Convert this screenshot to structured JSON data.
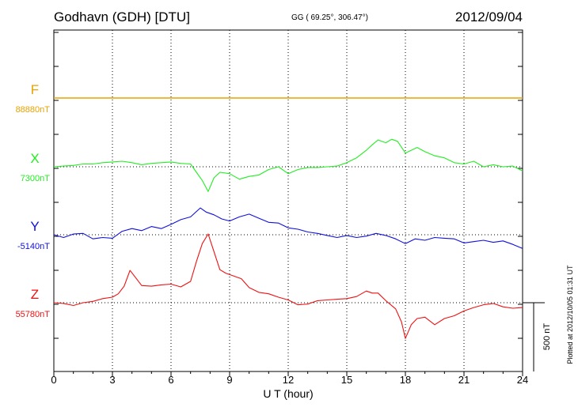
{
  "header": {
    "station": "Godhavn (GDH)  [DTU]",
    "coords": "GG ( 69.25°, 306.47°)",
    "date": "2012/09/04"
  },
  "plotted_note": "Plotted at 2012/10/05 01:31  UT",
  "chart_data": {
    "type": "line",
    "xlabel": "U T (hour)",
    "xlim": [
      0,
      24
    ],
    "xticks": [
      "0",
      "3",
      "6",
      "9",
      "12",
      "15",
      "18",
      "21",
      "24"
    ],
    "y_units": "nT",
    "scale_bar": {
      "label": "500 nT",
      "value": 500
    },
    "series": [
      {
        "name": "F",
        "baseline": "88880nT",
        "color": "#e8a200",
        "x": [
          0,
          24
        ],
        "y": [
          0,
          0
        ]
      },
      {
        "name": "X",
        "baseline": "7300nT",
        "color": "#22ee22",
        "x": [
          0,
          0.5,
          1,
          1.5,
          2,
          2.5,
          3,
          3.5,
          4,
          4.5,
          5,
          5.5,
          6,
          6.5,
          7,
          7.3,
          7.6,
          7.9,
          8.2,
          8.5,
          9,
          9.5,
          10,
          10.5,
          11,
          11.5,
          12,
          12.5,
          13,
          13.5,
          14,
          14.5,
          15,
          15.5,
          16,
          16.3,
          16.6,
          17,
          17.3,
          17.6,
          18,
          18.3,
          18.6,
          19,
          19.5,
          20,
          20.5,
          21,
          21.5,
          22,
          22.5,
          23,
          23.5,
          24
        ],
        "y": [
          0,
          5,
          10,
          20,
          20,
          30,
          35,
          40,
          30,
          15,
          25,
          30,
          35,
          25,
          20,
          -40,
          -100,
          -180,
          -80,
          -40,
          -50,
          -90,
          -70,
          -60,
          -20,
          0,
          -50,
          -20,
          -5,
          -5,
          0,
          5,
          30,
          65,
          120,
          160,
          195,
          175,
          200,
          185,
          100,
          120,
          140,
          110,
          80,
          65,
          30,
          20,
          40,
          0,
          15,
          0,
          5,
          -30
        ]
      },
      {
        "name": "Y",
        "baseline": "-5140nT",
        "color": "#1010dd",
        "x": [
          0,
          0.5,
          1,
          1.5,
          2,
          2.5,
          3,
          3.5,
          4,
          4.5,
          5,
          5.5,
          6,
          6.5,
          7,
          7.5,
          7.8,
          8.2,
          8.6,
          9,
          9.5,
          10,
          10.5,
          11,
          11.5,
          12,
          12.5,
          13,
          13.5,
          14,
          14.5,
          15,
          15.5,
          16,
          16.5,
          17,
          17.5,
          18,
          18.5,
          19,
          19.5,
          20,
          20.5,
          21,
          21.5,
          22,
          22.5,
          23,
          23.5,
          24
        ],
        "y": [
          0,
          -20,
          5,
          10,
          -30,
          -20,
          -25,
          25,
          45,
          30,
          60,
          45,
          75,
          110,
          130,
          195,
          165,
          145,
          115,
          100,
          130,
          150,
          120,
          90,
          85,
          50,
          40,
          20,
          10,
          -5,
          -20,
          -5,
          -20,
          -10,
          10,
          -5,
          -30,
          -65,
          -30,
          -40,
          -20,
          -25,
          -30,
          -60,
          -50,
          -40,
          -55,
          -45,
          -70,
          -100
        ]
      },
      {
        "name": "Z",
        "baseline": "55780nT",
        "color": "#ee1111",
        "x": [
          0,
          0.5,
          1,
          1.5,
          2,
          2.5,
          3,
          3.3,
          3.6,
          3.9,
          4.2,
          4.5,
          5,
          5.5,
          6,
          6.5,
          7,
          7.3,
          7.6,
          7.9,
          8.2,
          8.5,
          8.8,
          9.2,
          9.6,
          10,
          10.5,
          11,
          11.5,
          12,
          12.5,
          13,
          13.5,
          14,
          14.5,
          15,
          15.5,
          16,
          16.3,
          16.6,
          17,
          17.5,
          17.8,
          18,
          18.3,
          18.6,
          19,
          19.5,
          20,
          20.5,
          21,
          21.5,
          22,
          22.5,
          23,
          23.5,
          24
        ],
        "y": [
          0,
          -5,
          -20,
          0,
          10,
          30,
          40,
          65,
          120,
          235,
          180,
          125,
          120,
          130,
          135,
          115,
          155,
          300,
          430,
          500,
          370,
          240,
          215,
          195,
          175,
          110,
          75,
          65,
          40,
          20,
          -15,
          -10,
          15,
          20,
          25,
          30,
          45,
          85,
          70,
          70,
          15,
          -45,
          -140,
          -260,
          -160,
          -115,
          -105,
          -160,
          -115,
          -95,
          -60,
          -35,
          -15,
          -5,
          -30,
          -40,
          -35
        ]
      }
    ]
  }
}
